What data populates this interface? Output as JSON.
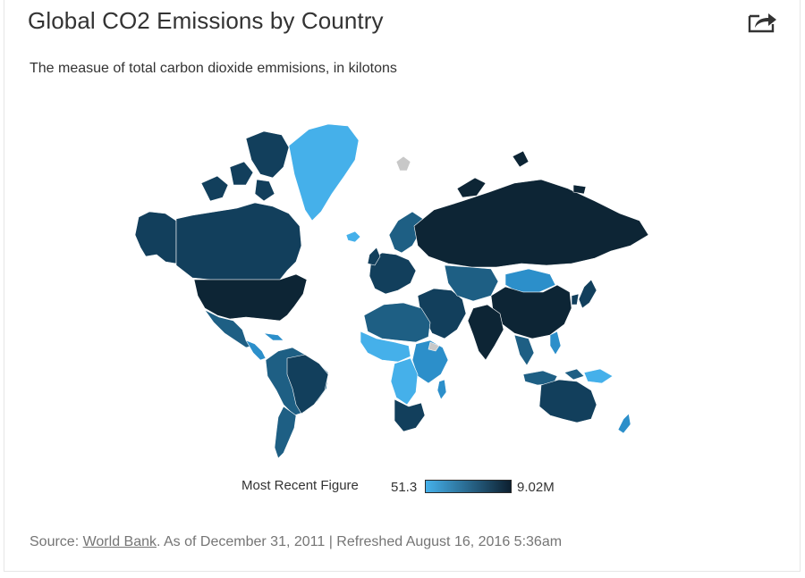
{
  "header": {
    "title": "Global CO2 Emissions by Country",
    "subtitle": "The measue of total carbon dioxide emmisions, in kilotons",
    "share_icon": "share-icon"
  },
  "legend": {
    "label": "Most Recent Figure",
    "min_label": "51.3",
    "max_label": "9.02M",
    "min_color": "#45b0ea",
    "max_color": "#0d2030"
  },
  "colors": {
    "very_low": "#45b0ea",
    "low": "#2c8fca",
    "medium": "#1e5f84",
    "high": "#123f5c",
    "very_high": "#0d2535",
    "no_data": "#c8c8c8"
  },
  "footer": {
    "source_prefix": "Source: ",
    "source_link": "World Bank",
    "source_suffix": ". As of December 31, 2011 | Refreshed August 16, 2016 5:36am"
  }
}
